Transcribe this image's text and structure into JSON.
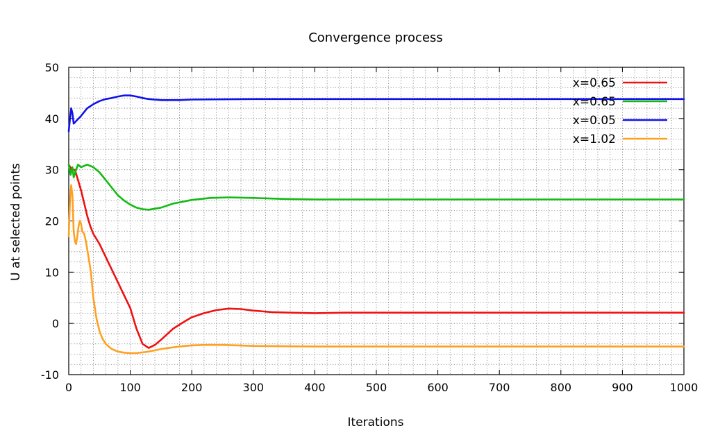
{
  "chart_data": {
    "type": "line",
    "title": "Convergence process",
    "xlabel": "Iterations",
    "ylabel": "U at selected points",
    "xlim": [
      0,
      1000
    ],
    "ylim": [
      -10,
      50
    ],
    "x_ticks": [
      0,
      100,
      200,
      300,
      400,
      500,
      600,
      700,
      800,
      900,
      1000
    ],
    "y_ticks": [
      -10,
      0,
      10,
      20,
      30,
      40,
      50
    ],
    "grid": true,
    "legend_position": "top-right",
    "series": [
      {
        "name": "x=0.65",
        "color": "#ee1111",
        "points": [
          [
            0,
            31
          ],
          [
            5,
            30
          ],
          [
            10,
            30
          ],
          [
            15,
            28
          ],
          [
            20,
            26
          ],
          [
            25,
            23.5
          ],
          [
            30,
            21
          ],
          [
            35,
            19
          ],
          [
            40,
            17.5
          ],
          [
            50,
            15.5
          ],
          [
            60,
            13
          ],
          [
            70,
            10.5
          ],
          [
            80,
            8
          ],
          [
            90,
            5.5
          ],
          [
            100,
            3
          ],
          [
            110,
            -1
          ],
          [
            120,
            -4
          ],
          [
            130,
            -4.8
          ],
          [
            140,
            -4.2
          ],
          [
            150,
            -3.2
          ],
          [
            170,
            -1
          ],
          [
            190,
            0.5
          ],
          [
            200,
            1.2
          ],
          [
            220,
            2
          ],
          [
            240,
            2.6
          ],
          [
            260,
            2.9
          ],
          [
            280,
            2.8
          ],
          [
            300,
            2.5
          ],
          [
            330,
            2.2
          ],
          [
            360,
            2.1
          ],
          [
            400,
            2.0
          ],
          [
            450,
            2.1
          ],
          [
            500,
            2.1
          ],
          [
            600,
            2.1
          ],
          [
            700,
            2.1
          ],
          [
            800,
            2.1
          ],
          [
            900,
            2.1
          ],
          [
            1000,
            2.1
          ]
        ]
      },
      {
        "name": "x=0.65",
        "color": "#11bb11",
        "points": [
          [
            0,
            31
          ],
          [
            3,
            29
          ],
          [
            6,
            30.5
          ],
          [
            8,
            28.5
          ],
          [
            12,
            30
          ],
          [
            15,
            31
          ],
          [
            20,
            30.5
          ],
          [
            30,
            31
          ],
          [
            40,
            30.5
          ],
          [
            50,
            29.5
          ],
          [
            60,
            28
          ],
          [
            70,
            26.5
          ],
          [
            80,
            25
          ],
          [
            90,
            24
          ],
          [
            100,
            23.2
          ],
          [
            110,
            22.6
          ],
          [
            120,
            22.3
          ],
          [
            130,
            22.2
          ],
          [
            150,
            22.6
          ],
          [
            170,
            23.4
          ],
          [
            200,
            24.1
          ],
          [
            230,
            24.5
          ],
          [
            260,
            24.6
          ],
          [
            300,
            24.5
          ],
          [
            350,
            24.3
          ],
          [
            400,
            24.2
          ],
          [
            500,
            24.2
          ],
          [
            600,
            24.2
          ],
          [
            700,
            24.2
          ],
          [
            800,
            24.2
          ],
          [
            900,
            24.2
          ],
          [
            1000,
            24.2
          ]
        ]
      },
      {
        "name": "x=0.05",
        "color": "#1111ee",
        "points": [
          [
            0,
            37.5
          ],
          [
            2,
            40
          ],
          [
            4,
            42
          ],
          [
            6,
            41
          ],
          [
            8,
            39
          ],
          [
            12,
            39.5
          ],
          [
            20,
            40.5
          ],
          [
            30,
            42
          ],
          [
            40,
            42.8
          ],
          [
            50,
            43.4
          ],
          [
            60,
            43.8
          ],
          [
            70,
            44
          ],
          [
            80,
            44.3
          ],
          [
            90,
            44.5
          ],
          [
            100,
            44.5
          ],
          [
            110,
            44.3
          ],
          [
            120,
            44
          ],
          [
            130,
            43.8
          ],
          [
            150,
            43.6
          ],
          [
            180,
            43.6
          ],
          [
            200,
            43.7
          ],
          [
            300,
            43.8
          ],
          [
            400,
            43.8
          ],
          [
            500,
            43.8
          ],
          [
            600,
            43.8
          ],
          [
            700,
            43.8
          ],
          [
            800,
            43.8
          ],
          [
            900,
            43.8
          ],
          [
            1000,
            43.8
          ]
        ]
      },
      {
        "name": "x=1.02",
        "color": "#ffa020",
        "points": [
          [
            0,
            17
          ],
          [
            2,
            24
          ],
          [
            4,
            27
          ],
          [
            6,
            25
          ],
          [
            8,
            18
          ],
          [
            10,
            16
          ],
          [
            12,
            15.5
          ],
          [
            14,
            17
          ],
          [
            16,
            19
          ],
          [
            18,
            20
          ],
          [
            20,
            19.5
          ],
          [
            22,
            18
          ],
          [
            25,
            17.5
          ],
          [
            28,
            16
          ],
          [
            32,
            13
          ],
          [
            36,
            10
          ],
          [
            40,
            5
          ],
          [
            45,
            1
          ],
          [
            50,
            -1.5
          ],
          [
            55,
            -3
          ],
          [
            60,
            -4
          ],
          [
            70,
            -5
          ],
          [
            80,
            -5.5
          ],
          [
            90,
            -5.7
          ],
          [
            100,
            -5.8
          ],
          [
            110,
            -5.8
          ],
          [
            130,
            -5.5
          ],
          [
            150,
            -5
          ],
          [
            180,
            -4.5
          ],
          [
            200,
            -4.3
          ],
          [
            220,
            -4.2
          ],
          [
            250,
            -4.2
          ],
          [
            300,
            -4.4
          ],
          [
            400,
            -4.5
          ],
          [
            500,
            -4.5
          ],
          [
            600,
            -4.5
          ],
          [
            700,
            -4.5
          ],
          [
            800,
            -4.5
          ],
          [
            900,
            -4.5
          ],
          [
            1000,
            -4.5
          ]
        ]
      }
    ]
  }
}
